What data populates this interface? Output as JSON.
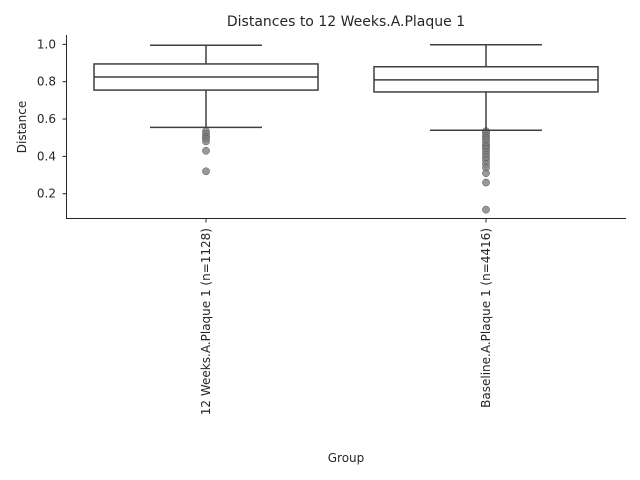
{
  "chart_data": {
    "type": "box",
    "title": "Distances to 12 Weeks.A.Plaque 1",
    "xlabel": "Group",
    "ylabel": "Distance",
    "ylim": [
      0.07,
      1.05
    ],
    "yticks": [
      0.2,
      0.4,
      0.6,
      0.8,
      1.0
    ],
    "ytick_labels": [
      "0.2",
      "0.4",
      "0.6",
      "0.8",
      "1.0"
    ],
    "grid": false,
    "categories": [
      "12 Weeks.A.Plaque 1 (n=1128)",
      "Baseline.A.Plaque 1 (n=4416)"
    ],
    "boxes": [
      {
        "category": "12 Weeks.A.Plaque 1 (n=1128)",
        "whisker_low": 0.555,
        "q1": 0.755,
        "median": 0.825,
        "q3": 0.895,
        "whisker_high": 0.995,
        "outliers": [
          0.535,
          0.52,
          0.505,
          0.495,
          0.48,
          0.43,
          0.32
        ]
      },
      {
        "category": "Baseline.A.Plaque 1 (n=4416)",
        "whisker_low": 0.54,
        "q1": 0.745,
        "median": 0.81,
        "q3": 0.88,
        "whisker_high": 0.998,
        "outliers": [
          0.535,
          0.525,
          0.51,
          0.5,
          0.49,
          0.475,
          0.46,
          0.45,
          0.44,
          0.425,
          0.41,
          0.395,
          0.38,
          0.36,
          0.34,
          0.31,
          0.26,
          0.115
        ]
      }
    ],
    "colors": {
      "line": "#3f3f3f",
      "outlier": "#7f7f7f",
      "text": "#262626",
      "axis": "#262626"
    }
  }
}
